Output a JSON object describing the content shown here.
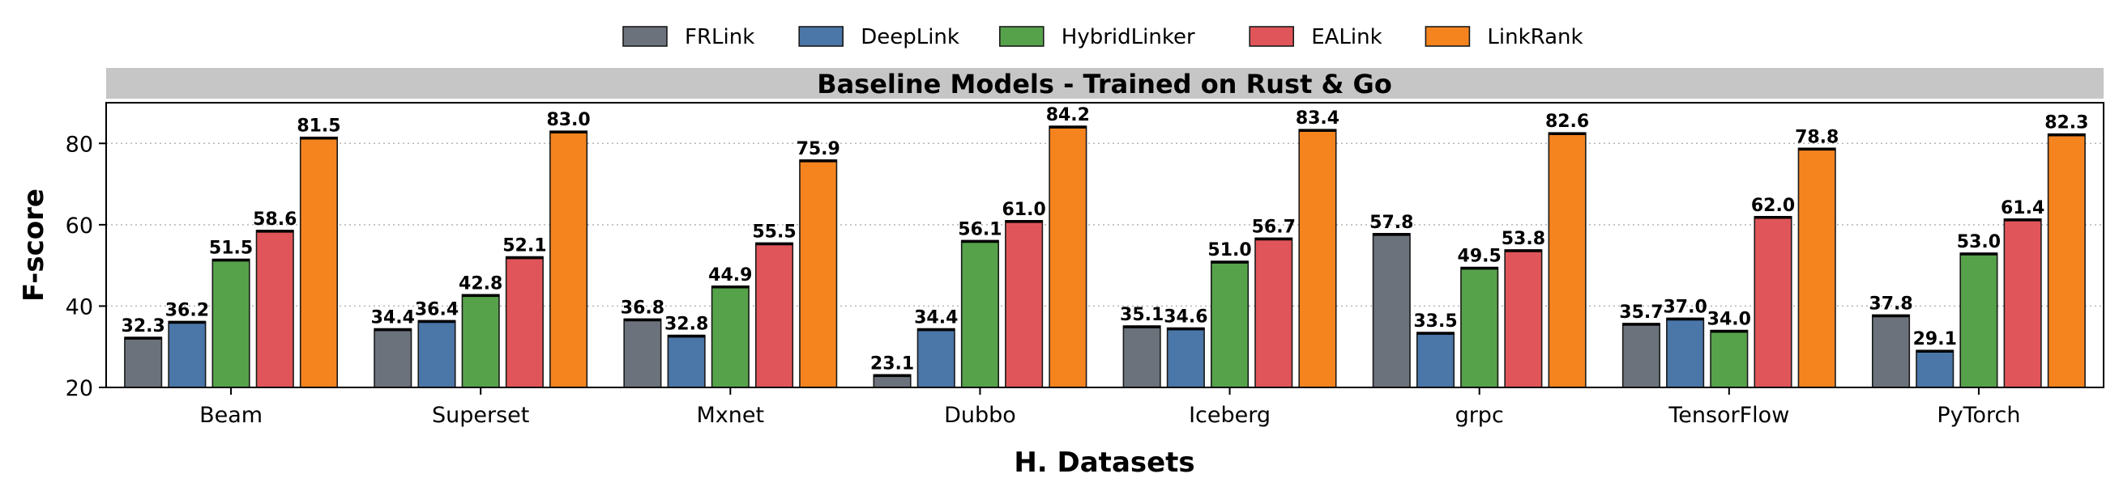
{
  "chart_data": {
    "type": "bar",
    "title": "Baseline Models - Trained on Rust & Go",
    "xlabel": "H. Datasets",
    "ylabel": "F-score",
    "ylim": [
      20,
      90
    ],
    "yticks": [
      20,
      40,
      60,
      80
    ],
    "grid": "y-dotted",
    "legend_position": "top-center",
    "categories": [
      "Beam",
      "Superset",
      "Mxnet",
      "Dubbo",
      "Iceberg",
      "grpc",
      "TensorFlow",
      "PyTorch"
    ],
    "series": [
      {
        "name": "FRLink",
        "color": "#6b727b",
        "values": [
          32.3,
          34.4,
          36.8,
          23.1,
          35.1,
          57.8,
          35.7,
          37.8
        ]
      },
      {
        "name": "DeepLink",
        "color": "#4a76a8",
        "values": [
          36.2,
          36.4,
          32.8,
          34.4,
          34.6,
          33.5,
          37.0,
          29.1
        ]
      },
      {
        "name": "HybridLinker",
        "color": "#56a24a",
        "values": [
          51.5,
          42.8,
          44.9,
          56.1,
          51.0,
          49.5,
          34.0,
          53.0
        ]
      },
      {
        "name": "EALink",
        "color": "#e05559",
        "values": [
          58.6,
          52.1,
          55.5,
          61.0,
          56.7,
          53.8,
          62.0,
          61.4
        ]
      },
      {
        "name": "LinkRank",
        "color": "#f5841f",
        "values": [
          81.5,
          83.0,
          75.9,
          84.2,
          83.4,
          82.6,
          78.8,
          82.3
        ]
      }
    ]
  }
}
